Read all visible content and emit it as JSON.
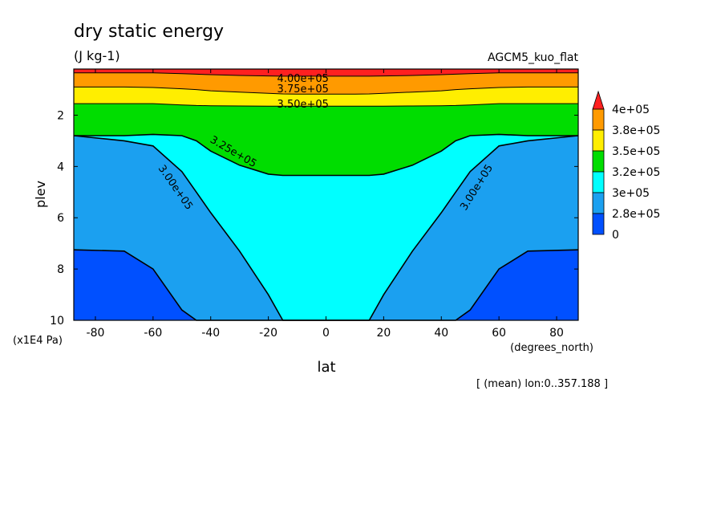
{
  "chart_data": {
    "type": "contour",
    "title": "dry static energy",
    "units": "(J kg-1)",
    "model_label": "AGCM5_kuo_flat",
    "xlabel": "lat",
    "x_units": "(degrees_north)",
    "ylabel": "plev",
    "y_units": "(x1E4 Pa)",
    "footer": "[ (mean) lon:0..357.188 ]",
    "xlim": [
      -87.5,
      87.5
    ],
    "ylim": [
      10,
      0.2
    ],
    "x_ticks": [
      -80,
      -60,
      -40,
      -20,
      0,
      20,
      40,
      60,
      80
    ],
    "y_ticks": [
      2,
      4,
      6,
      8,
      10
    ],
    "colorbar": {
      "labels": [
        "4e+05",
        "3.8e+05",
        "3.5e+05",
        "3.2e+05",
        "3e+05",
        "2.8e+05",
        "0"
      ],
      "colors": [
        "#ff2020",
        "#ff9a00",
        "#ffee00",
        "#00dd00",
        "#00ffff",
        "#1ba0f0",
        "#0050ff"
      ]
    },
    "contour_labels": [
      {
        "text": "4.00e+05",
        "lat": -8,
        "plev": 0.55
      },
      {
        "text": "3.75e+05",
        "lat": -8,
        "plev": 0.95
      },
      {
        "text": "3.50e+05",
        "lat": -8,
        "plev": 1.55
      },
      {
        "text": "3.25e+05",
        "lat": -32,
        "plev": 3.4
      },
      {
        "text": "3.00e+05",
        "lat": -52,
        "plev": 4.8
      },
      {
        "text": "3.00e+05",
        "lat": 52,
        "plev": 4.8
      }
    ],
    "levels_profile": {
      "lat": [
        -87.5,
        -70,
        -60,
        -50,
        -45,
        -40,
        -30,
        -20,
        -15,
        -10,
        0,
        10,
        15,
        20,
        30,
        40,
        45,
        50,
        60,
        70,
        87.5
      ],
      "L400": [
        0.35,
        0.35,
        0.35,
        0.38,
        0.4,
        0.42,
        0.45,
        0.47,
        0.48,
        0.48,
        0.48,
        0.48,
        0.48,
        0.47,
        0.45,
        0.42,
        0.4,
        0.38,
        0.35,
        0.35,
        0.35
      ],
      "L375": [
        0.9,
        0.9,
        0.92,
        0.97,
        1.0,
        1.05,
        1.1,
        1.15,
        1.17,
        1.18,
        1.18,
        1.18,
        1.17,
        1.15,
        1.1,
        1.05,
        1.0,
        0.97,
        0.92,
        0.9,
        0.9
      ],
      "L350": [
        1.55,
        1.55,
        1.55,
        1.6,
        1.62,
        1.63,
        1.64,
        1.65,
        1.65,
        1.65,
        1.65,
        1.65,
        1.65,
        1.65,
        1.64,
        1.63,
        1.62,
        1.6,
        1.55,
        1.55,
        1.55
      ],
      "L325": [
        2.8,
        2.8,
        2.75,
        2.8,
        3.0,
        3.4,
        3.95,
        4.3,
        4.35,
        4.35,
        4.35,
        4.35,
        4.35,
        4.3,
        3.95,
        3.4,
        3.0,
        2.8,
        2.75,
        2.8,
        2.8
      ],
      "L300": [
        2.8,
        3.0,
        3.2,
        4.2,
        5.0,
        5.8,
        7.3,
        9.0,
        10.0,
        10.0,
        10.0,
        10.0,
        10.0,
        9.0,
        7.3,
        5.8,
        5.0,
        4.2,
        3.2,
        3.0,
        2.8
      ],
      "L280": [
        7.25,
        7.3,
        8.0,
        9.6,
        10.0,
        10.0,
        10.0,
        10.0,
        10.0,
        10.0,
        10.0,
        10.0,
        10.0,
        10.0,
        10.0,
        10.0,
        10.0,
        9.6,
        8.0,
        7.3,
        7.25
      ]
    }
  }
}
